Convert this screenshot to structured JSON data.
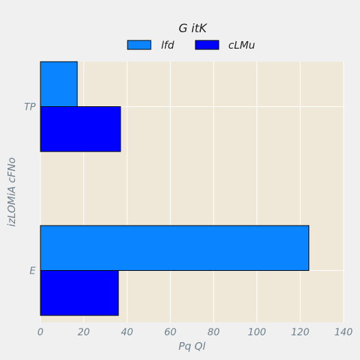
{
  "chart_data": {
    "type": "bar",
    "orientation": "horizontal",
    "title": "G itK",
    "xlabel": "Pq Ql",
    "ylabel": "izLOMiA cFNo",
    "categories": [
      "TP",
      "E"
    ],
    "series": [
      {
        "name": "lfd",
        "values": [
          17,
          124
        ],
        "color": "#0a84ff"
      },
      {
        "name": "cLMu",
        "values": [
          37,
          36
        ],
        "color": "#0000ff"
      }
    ],
    "xlim": [
      0,
      140
    ],
    "xticks": [
      0,
      20,
      40,
      60,
      80,
      100,
      120,
      140
    ],
    "grid": true,
    "legend_position": "top-center"
  },
  "colors": {
    "page_background": "#f0f0f0",
    "plot_background": "#efe8d8",
    "grid": "#ffffff",
    "tick_text": "#6b7f8c",
    "bar_edge": "#000000"
  }
}
